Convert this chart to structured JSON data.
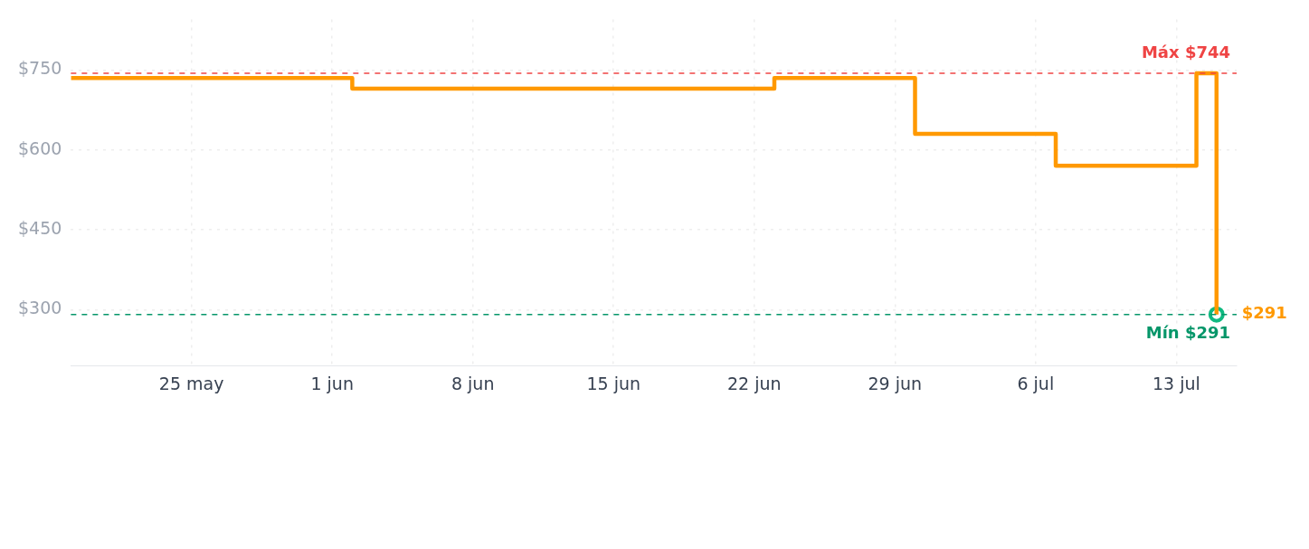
{
  "chart_data": {
    "type": "step",
    "x": [
      "--05-19",
      "--06-02",
      "--06-23",
      "--06-30",
      "--07-07",
      "--07-14",
      "--07-15"
    ],
    "series": [
      {
        "color": "#ff9900",
        "values": [
          735,
          715,
          735,
          630,
          570,
          744,
          291
        ]
      },
      {
        "type": "scatter",
        "color": "#10b981",
        "x": [
          "--07-15"
        ],
        "values": [
          291
        ]
      }
    ],
    "xlim": [
      "--05-19",
      "--07-16"
    ],
    "xticks": [
      {
        "value": "--05-25",
        "label": "25 may"
      },
      {
        "value": "--06-01",
        "label": "1 jun"
      },
      {
        "value": "--06-08",
        "label": "8 jun"
      },
      {
        "value": "--06-15",
        "label": "15 jun"
      },
      {
        "value": "--06-22",
        "label": "22 jun"
      },
      {
        "value": "--06-29",
        "label": "29 jun"
      },
      {
        "value": "--07-06",
        "label": "6 jul"
      },
      {
        "value": "--07-13",
        "label": "13 jul"
      }
    ],
    "ylim": [
      195,
      845
    ],
    "yticks": [
      {
        "value": 300,
        "label": "$300"
      },
      {
        "value": 450,
        "label": "$450"
      },
      {
        "value": 600,
        "label": "$600"
      },
      {
        "value": 750,
        "label": "$750"
      }
    ],
    "ref_lines": [
      {
        "axis": "y",
        "value": 744,
        "label": "Máx $744",
        "color": "#ef4444",
        "line_style": "dashed"
      },
      {
        "axis": "y",
        "value": 291,
        "label": "Mín $291",
        "color": "#059669",
        "line_style": "dashed"
      }
    ],
    "annotations": [
      {
        "text": "$291",
        "x": "--07-15",
        "y": 291
      }
    ],
    "grid": true
  }
}
